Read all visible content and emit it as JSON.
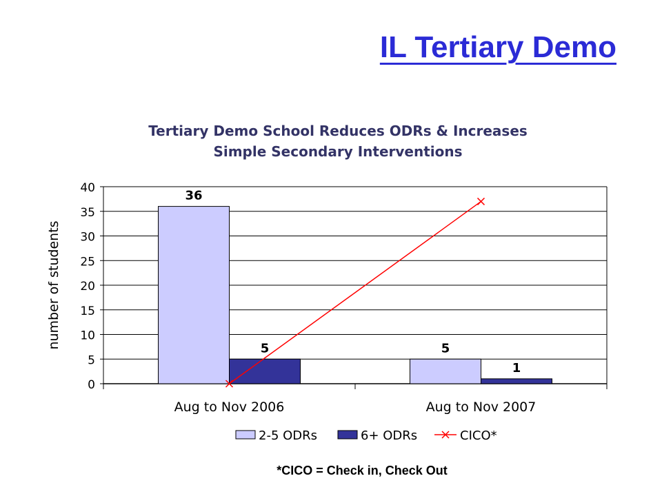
{
  "slide": {
    "title": "IL Tertiary Demo",
    "footnote": "*CICO = Check in, Check Out"
  },
  "chart_data": {
    "type": "bar",
    "title_lines": [
      "Tertiary Demo School Reduces ODRs & Increases",
      "Simple Secondary Interventions"
    ],
    "categories": [
      "Aug to Nov 2006",
      "Aug to Nov 2007"
    ],
    "series": [
      {
        "name": "2-5 ODRs",
        "type": "bar",
        "values": [
          36,
          5
        ],
        "labels": [
          "36",
          "5"
        ],
        "color": "#ccccff"
      },
      {
        "name": "6+ ODRs",
        "type": "bar",
        "values": [
          5,
          1
        ],
        "labels": [
          "5",
          "1"
        ],
        "color": "#333399"
      },
      {
        "name": "CICO*",
        "type": "line",
        "marker": "x",
        "values": [
          0,
          37
        ],
        "color": "#ff0000"
      }
    ],
    "xlabel": "",
    "ylabel": "number of students",
    "ylim": [
      0,
      40
    ],
    "yticks": [
      0,
      5,
      10,
      15,
      20,
      25,
      30,
      35,
      40
    ],
    "grid": true,
    "legend": "bottom"
  }
}
